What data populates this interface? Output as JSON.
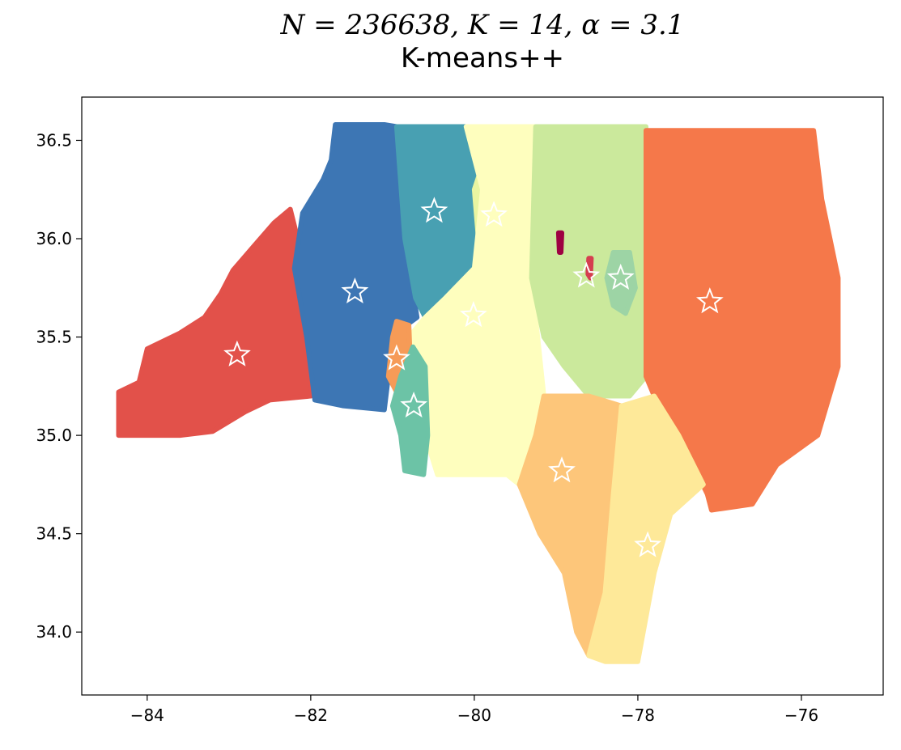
{
  "chart_data": {
    "type": "scatter",
    "title": "N = 236638, K = 14, α = 3.1",
    "subtitle": "K-means++",
    "xlabel": "",
    "ylabel": "",
    "xlim": [
      -84.8,
      -75.0
    ],
    "ylim": [
      33.68,
      36.72
    ],
    "xticks": [
      -84,
      -82,
      -80,
      -78,
      -76
    ],
    "xtick_labels": [
      "−84",
      "−82",
      "−80",
      "−78",
      "−76"
    ],
    "yticks": [
      34.0,
      34.5,
      35.0,
      35.5,
      36.0,
      36.5
    ],
    "ytick_labels": [
      "34.0",
      "34.5",
      "35.0",
      "35.5",
      "36.0",
      "36.5"
    ],
    "grid": false,
    "legend": "none",
    "clusters": [
      {
        "color": "#e2514a",
        "center": [
          -82.9,
          35.41
        ],
        "region": [
          [
            -84.35,
            35.0
          ],
          [
            -84.35,
            35.22
          ],
          [
            -84.1,
            35.27
          ],
          [
            -84.0,
            35.44
          ],
          [
            -83.6,
            35.52
          ],
          [
            -83.3,
            35.6
          ],
          [
            -83.1,
            35.72
          ],
          [
            -82.95,
            35.84
          ],
          [
            -82.7,
            35.96
          ],
          [
            -82.45,
            36.08
          ],
          [
            -82.25,
            36.15
          ],
          [
            -82.1,
            35.9
          ],
          [
            -81.95,
            35.5
          ],
          [
            -82.0,
            35.2
          ],
          [
            -82.5,
            35.18
          ],
          [
            -82.8,
            35.12
          ],
          [
            -83.2,
            35.02
          ],
          [
            -83.6,
            35.0
          ]
        ]
      },
      {
        "color": "#3d76b4",
        "center": [
          -81.46,
          35.73
        ],
        "region": [
          [
            -82.1,
            36.13
          ],
          [
            -81.85,
            36.3
          ],
          [
            -81.75,
            36.4
          ],
          [
            -81.7,
            36.58
          ],
          [
            -81.1,
            36.58
          ],
          [
            -80.95,
            36.57
          ],
          [
            -80.85,
            36.0
          ],
          [
            -80.7,
            35.6
          ],
          [
            -80.8,
            35.57
          ],
          [
            -81.0,
            35.5
          ],
          [
            -81.05,
            35.3
          ],
          [
            -81.1,
            35.13
          ],
          [
            -81.6,
            35.15
          ],
          [
            -81.95,
            35.18
          ],
          [
            -82.05,
            35.5
          ],
          [
            -82.2,
            35.85
          ]
        ]
      },
      {
        "color": "#48a0b2",
        "center": [
          -80.49,
          36.14
        ],
        "label_pos": "upper-left",
        "region": [
          [
            -80.95,
            36.57
          ],
          [
            -80.1,
            36.57
          ],
          [
            -79.9,
            36.25
          ],
          [
            -80.0,
            35.85
          ],
          [
            -80.35,
            35.7
          ],
          [
            -80.6,
            35.6
          ],
          [
            -80.72,
            35.7
          ],
          [
            -80.85,
            36.0
          ]
        ]
      },
      {
        "color": "#e9f5a1",
        "center": [
          -79.76,
          36.12
        ],
        "region": [
          [
            -79.8,
            36.5
          ],
          [
            -79.55,
            36.45
          ],
          [
            -79.45,
            36.2
          ],
          [
            -79.55,
            35.95
          ],
          [
            -79.75,
            35.9
          ],
          [
            -79.95,
            36.0
          ],
          [
            -80.0,
            36.25
          ]
        ]
      },
      {
        "color": "#fefebe",
        "center": [
          -80.01,
          35.61
        ],
        "region": [
          [
            -80.1,
            36.57
          ],
          [
            -79.25,
            36.57
          ],
          [
            -79.3,
            35.8
          ],
          [
            -79.15,
            35.2
          ],
          [
            -79.25,
            35.0
          ],
          [
            -79.45,
            34.75
          ],
          [
            -79.6,
            34.8
          ],
          [
            -80.0,
            34.8
          ],
          [
            -80.45,
            34.8
          ],
          [
            -80.6,
            35.0
          ],
          [
            -80.7,
            35.4
          ],
          [
            -80.8,
            35.5
          ],
          [
            -80.6,
            35.6
          ],
          [
            -80.35,
            35.7
          ],
          [
            -80.0,
            35.85
          ],
          [
            -79.9,
            36.25
          ]
        ]
      },
      {
        "color": "#cbe99c",
        "center": [
          -78.63,
          35.81
        ],
        "region": [
          [
            -79.25,
            36.57
          ],
          [
            -77.9,
            36.57
          ],
          [
            -77.9,
            35.3
          ],
          [
            -78.1,
            35.2
          ],
          [
            -78.6,
            35.2
          ],
          [
            -78.9,
            35.35
          ],
          [
            -79.15,
            35.5
          ],
          [
            -79.3,
            35.8
          ]
        ]
      },
      {
        "color": "#9dd4a5",
        "center": [
          -78.21,
          35.8
        ],
        "region": [
          [
            -78.3,
            35.93
          ],
          [
            -78.1,
            35.93
          ],
          [
            -78.03,
            35.75
          ],
          [
            -78.15,
            35.62
          ],
          [
            -78.3,
            35.66
          ],
          [
            -78.38,
            35.8
          ]
        ]
      },
      {
        "color": "#f5784a",
        "center": [
          -77.12,
          35.68
        ],
        "region": [
          [
            -77.9,
            36.55
          ],
          [
            -75.85,
            36.55
          ],
          [
            -75.75,
            36.2
          ],
          [
            -75.55,
            35.8
          ],
          [
            -75.55,
            35.35
          ],
          [
            -75.8,
            35.0
          ],
          [
            -76.3,
            34.85
          ],
          [
            -76.6,
            34.65
          ],
          [
            -77.1,
            34.62
          ],
          [
            -77.15,
            34.7
          ],
          [
            -77.5,
            35.0
          ],
          [
            -77.8,
            35.2
          ],
          [
            -77.9,
            35.3
          ]
        ]
      },
      {
        "color": "#fdc67a",
        "center": [
          -78.93,
          34.82
        ],
        "region": [
          [
            -79.15,
            35.2
          ],
          [
            -78.6,
            35.2
          ],
          [
            -78.2,
            35.15
          ],
          [
            -78.3,
            34.7
          ],
          [
            -78.4,
            34.2
          ],
          [
            -78.6,
            33.88
          ],
          [
            -78.75,
            34.0
          ],
          [
            -78.9,
            34.3
          ],
          [
            -79.2,
            34.5
          ],
          [
            -79.45,
            34.75
          ],
          [
            -79.25,
            35.0
          ]
        ]
      },
      {
        "color": "#fee999",
        "center": [
          -77.88,
          34.44
        ],
        "region": [
          [
            -78.2,
            35.15
          ],
          [
            -77.8,
            35.2
          ],
          [
            -77.5,
            35.0
          ],
          [
            -77.2,
            34.75
          ],
          [
            -77.6,
            34.6
          ],
          [
            -77.8,
            34.3
          ],
          [
            -78.0,
            33.85
          ],
          [
            -78.4,
            33.85
          ],
          [
            -78.6,
            33.88
          ],
          [
            -78.4,
            34.2
          ],
          [
            -78.3,
            34.7
          ]
        ]
      },
      {
        "color": "#f69b57",
        "center": [
          -80.95,
          35.39
        ],
        "region": [
          [
            -80.95,
            35.58
          ],
          [
            -80.8,
            35.56
          ],
          [
            -80.78,
            35.35
          ],
          [
            -80.9,
            35.18
          ],
          [
            -81.05,
            35.3
          ],
          [
            -81.0,
            35.5
          ]
        ]
      },
      {
        "color": "#6cc3a6",
        "center": [
          -80.74,
          35.15
        ],
        "region": [
          [
            -80.75,
            35.45
          ],
          [
            -80.6,
            35.35
          ],
          [
            -80.57,
            35.0
          ],
          [
            -80.62,
            34.8
          ],
          [
            -80.85,
            34.82
          ],
          [
            -80.9,
            35.0
          ],
          [
            -81.0,
            35.15
          ],
          [
            -80.9,
            35.3
          ]
        ]
      },
      {
        "color": "#9e0142",
        "center": [
          -78.95,
          35.99
        ],
        "region": [
          [
            -78.97,
            36.03
          ],
          [
            -78.93,
            36.03
          ],
          [
            -78.94,
            35.93
          ],
          [
            -78.96,
            35.93
          ]
        ]
      },
      {
        "color": "#d53e4f",
        "center": [
          -78.59,
          35.87
        ],
        "region": [
          [
            -78.6,
            35.9
          ],
          [
            -78.57,
            35.9
          ],
          [
            -78.58,
            35.8
          ],
          [
            -78.61,
            35.82
          ]
        ]
      }
    ],
    "center_markers": "white outlined star"
  }
}
